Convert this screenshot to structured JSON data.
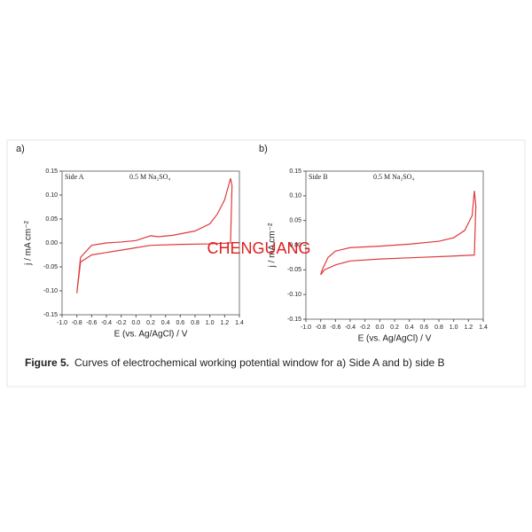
{
  "chart_data": [
    {
      "type": "line",
      "panel_label": "a)",
      "annotations": [
        "Side A",
        "0.5 M Na₂SO₄"
      ],
      "x_label": "E (vs. Ag/AgCl) / V",
      "y_label": "j / mA cm⁻²",
      "xlim": [
        -1.0,
        1.4
      ],
      "ylim": [
        -0.15,
        0.15
      ],
      "xticks": [
        {
          "value": -1.0,
          "label": "-1.0"
        },
        -0.8,
        -0.6,
        -0.4,
        -0.2,
        {
          "value": 0,
          "label": "0.0"
        },
        0.2,
        0.4,
        0.6,
        0.8,
        {
          "value": 1.0,
          "label": "1.0"
        },
        1.2,
        1.4
      ],
      "yticks": [
        {
          "value": -0.15,
          "label": "-0.15"
        },
        {
          "value": -0.1,
          "label": "-0.10"
        },
        -0.05,
        {
          "value": 0,
          "label": "0.00"
        },
        0.05,
        {
          "value": 0.1,
          "label": "0.10"
        },
        0.15
      ],
      "series": [
        {
          "color": "#e0393e",
          "x": [
            -0.8,
            -0.75,
            -0.6,
            -0.4,
            -0.2,
            0.0,
            0.1,
            0.2,
            0.3,
            0.5,
            0.8,
            1.0,
            1.1,
            1.2,
            1.28,
            1.3,
            1.28,
            1.0,
            0.6,
            0.2,
            0.0,
            -0.2,
            -0.4,
            -0.6,
            -0.75,
            -0.8
          ],
          "values": [
            -0.105,
            -0.03,
            -0.005,
            0.0,
            0.002,
            0.005,
            0.01,
            0.015,
            0.013,
            0.016,
            0.025,
            0.04,
            0.06,
            0.09,
            0.135,
            0.12,
            0.0,
            -0.002,
            -0.003,
            -0.005,
            -0.01,
            -0.015,
            -0.02,
            -0.025,
            -0.04,
            -0.105
          ]
        }
      ]
    },
    {
      "type": "line",
      "panel_label": "b)",
      "annotations": [
        "Side B",
        "0.5 M Na₂SO₄"
      ],
      "x_label": "E (vs. Ag/AgCl) / V",
      "y_label": "j / mA cm⁻²",
      "xlim": [
        -1.0,
        1.4
      ],
      "ylim": [
        -0.15,
        0.15
      ],
      "xticks": [
        {
          "value": -1.0,
          "label": "-1.0"
        },
        -0.8,
        -0.6,
        -0.4,
        -0.2,
        {
          "value": 0,
          "label": "0.0"
        },
        0.2,
        0.4,
        0.6,
        0.8,
        {
          "value": 1.0,
          "label": "1.0"
        },
        1.2,
        1.4
      ],
      "yticks": [
        {
          "value": -0.15,
          "label": "-0.15"
        },
        {
          "value": -0.1,
          "label": "-0.10"
        },
        -0.05,
        {
          "value": 0,
          "label": "0.00"
        },
        0.05,
        {
          "value": 0.1,
          "label": "0.10"
        },
        0.15
      ],
      "series": [
        {
          "color": "#e0393e",
          "x": [
            -0.8,
            -0.78,
            -0.7,
            -0.6,
            -0.4,
            0.0,
            0.4,
            0.8,
            1.0,
            1.15,
            1.25,
            1.28,
            1.3,
            1.28,
            1.0,
            0.5,
            0.0,
            -0.4,
            -0.6,
            -0.75,
            -0.8
          ],
          "values": [
            -0.06,
            -0.05,
            -0.025,
            -0.012,
            -0.005,
            -0.002,
            0.002,
            0.008,
            0.015,
            0.03,
            0.06,
            0.11,
            0.08,
            -0.02,
            -0.022,
            -0.025,
            -0.028,
            -0.032,
            -0.04,
            -0.05,
            -0.06
          ]
        }
      ]
    }
  ],
  "caption": {
    "label": "Figure 5.",
    "text": "Curves of electrochemical working potential window for a) Side A and b) side B"
  },
  "watermark": "CHENGUANG"
}
